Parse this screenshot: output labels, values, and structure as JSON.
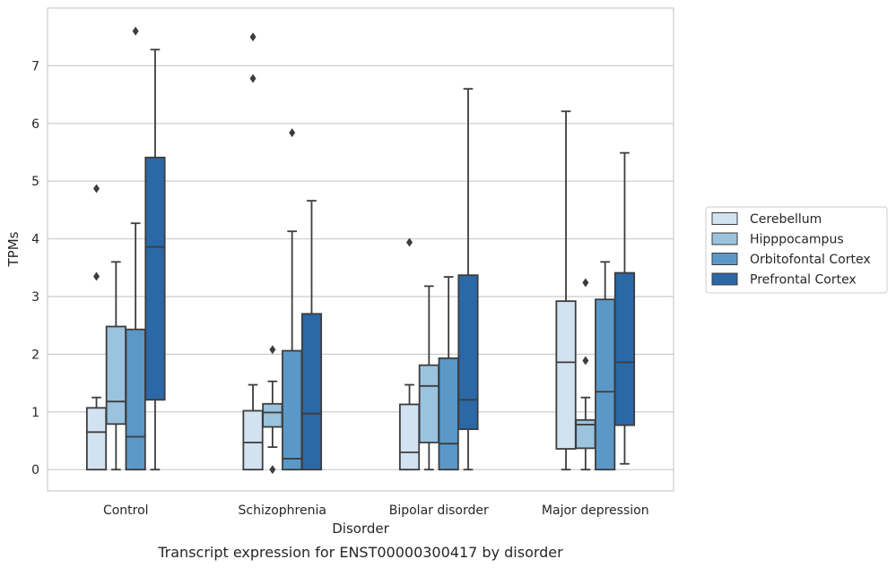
{
  "chart_data": {
    "type": "box",
    "title": "",
    "caption": "Transcript expression for ENST00000300417 by disorder",
    "xlabel": "Disorder",
    "ylabel": "TPMs",
    "ylim": [
      -0.37,
      8.0
    ],
    "yticks": [
      0,
      1,
      2,
      3,
      4,
      5,
      6,
      7
    ],
    "grid": "horizontal",
    "legend_position": "right",
    "categories": [
      "Control",
      "Schizophrenia",
      "Bipolar disorder",
      "Major depression"
    ],
    "series": [
      {
        "name": "Cerebellum",
        "color": "#d2e2f1",
        "boxes": [
          {
            "whislo": 0.0,
            "q1": 0.0,
            "med": 0.65,
            "q3": 1.07,
            "whishi": 1.25,
            "fliers": [
              3.35,
              4.87
            ]
          },
          {
            "whislo": 0.0,
            "q1": 0.0,
            "med": 0.47,
            "q3": 1.02,
            "whishi": 1.47,
            "fliers": [
              6.78,
              7.5
            ]
          },
          {
            "whislo": 0.0,
            "q1": 0.0,
            "med": 0.3,
            "q3": 1.13,
            "whishi": 1.47,
            "fliers": [
              3.94
            ]
          },
          {
            "whislo": 0.0,
            "q1": 0.36,
            "med": 1.86,
            "q3": 2.92,
            "whishi": 6.21,
            "fliers": []
          }
        ]
      },
      {
        "name": "Hipppocampus",
        "color": "#9bc3de",
        "boxes": [
          {
            "whislo": 0.0,
            "q1": 0.79,
            "med": 1.18,
            "q3": 2.48,
            "whishi": 3.6,
            "fliers": []
          },
          {
            "whislo": 0.39,
            "q1": 0.74,
            "med": 0.99,
            "q3": 1.14,
            "whishi": 1.53,
            "fliers": [
              0.0,
              2.08
            ]
          },
          {
            "whislo": 0.0,
            "q1": 0.47,
            "med": 1.45,
            "q3": 1.81,
            "whishi": 3.18,
            "fliers": []
          },
          {
            "whislo": 0.0,
            "q1": 0.37,
            "med": 0.78,
            "q3": 0.86,
            "whishi": 1.25,
            "fliers": [
              1.89,
              3.24
            ]
          }
        ]
      },
      {
        "name": "Orbitofontal Cortex",
        "color": "#5b98c8",
        "boxes": [
          {
            "whislo": 0.0,
            "q1": 0.0,
            "med": 0.57,
            "q3": 2.43,
            "whishi": 4.27,
            "fliers": [
              7.6
            ]
          },
          {
            "whislo": 0.0,
            "q1": 0.0,
            "med": 0.19,
            "q3": 2.06,
            "whishi": 4.13,
            "fliers": [
              5.84
            ]
          },
          {
            "whislo": 0.0,
            "q1": 0.0,
            "med": 0.45,
            "q3": 1.93,
            "whishi": 3.34,
            "fliers": []
          },
          {
            "whislo": 0.0,
            "q1": 0.0,
            "med": 1.35,
            "q3": 2.95,
            "whishi": 3.6,
            "fliers": []
          }
        ]
      },
      {
        "name": "Prefrontal Cortex",
        "color": "#2a68a6",
        "boxes": [
          {
            "whislo": 0.0,
            "q1": 1.21,
            "med": 3.86,
            "q3": 5.41,
            "whishi": 7.28,
            "fliers": []
          },
          {
            "whislo": 0.0,
            "q1": 0.0,
            "med": 0.97,
            "q3": 2.7,
            "whishi": 4.66,
            "fliers": []
          },
          {
            "whislo": 0.0,
            "q1": 0.7,
            "med": 1.21,
            "q3": 3.37,
            "whishi": 6.6,
            "fliers": []
          },
          {
            "whislo": 0.1,
            "q1": 0.77,
            "med": 1.86,
            "q3": 3.41,
            "whishi": 5.49,
            "fliers": []
          }
        ]
      }
    ]
  }
}
